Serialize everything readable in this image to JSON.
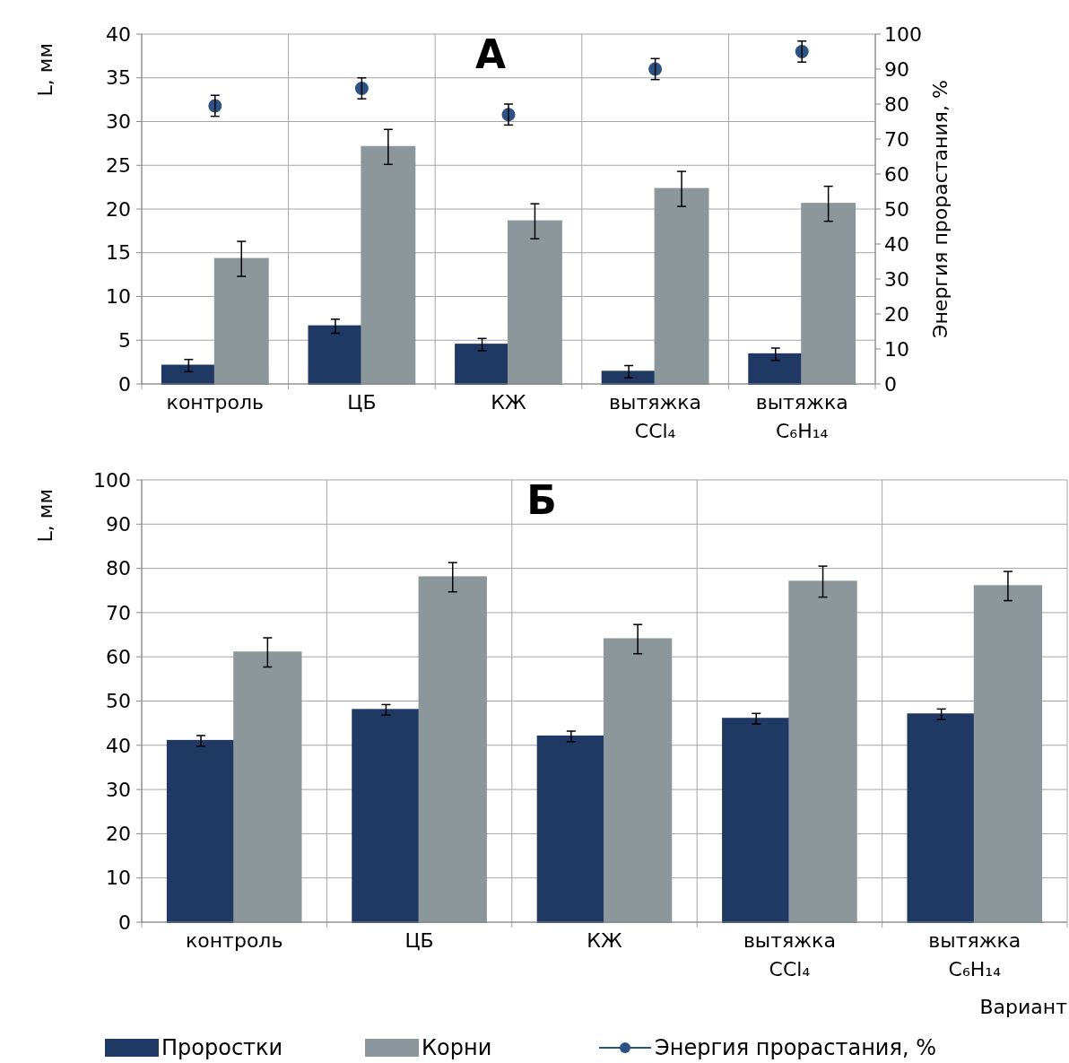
{
  "chart_data": [
    {
      "type": "bar",
      "title": "А",
      "ylabel": "L, мм",
      "y2label": "Энергия прорастания, %",
      "categories": [
        "контроль",
        "ЦБ",
        "КЖ",
        "вытяжка CCl₄",
        "вытяжка C₆H₁₄"
      ],
      "ylim": [
        0,
        40
      ],
      "yticks": [
        0,
        5,
        10,
        15,
        20,
        25,
        30,
        35,
        40
      ],
      "y2lim": [
        0,
        100
      ],
      "y2ticks": [
        0,
        10,
        20,
        30,
        40,
        50,
        60,
        70,
        80,
        90,
        100
      ],
      "grid": true,
      "legend": "bottom",
      "series": [
        {
          "name": "Проростки",
          "color": "#1f3864",
          "values": [
            2.1,
            6.6,
            4.5,
            1.4,
            3.4
          ],
          "errors": [
            0.7,
            0.8,
            0.7,
            0.7,
            0.7
          ]
        },
        {
          "name": "Корни",
          "color": "#8c979c",
          "values": [
            14.3,
            27.1,
            18.6,
            22.3,
            20.6
          ],
          "errors": [
            2,
            2,
            2,
            2,
            2
          ]
        },
        {
          "name": "Энергия прорастания, %",
          "type": "scatter",
          "axis": "y2",
          "marker": "circle",
          "color": "#2b5283",
          "x": [
            "контроль",
            "ЦБ",
            "КЖ",
            "вытяжка CCl₄",
            "вытяжка C₆H₁₄"
          ],
          "values": [
            79.5,
            84.5,
            77,
            90,
            95
          ],
          "errors": [
            3,
            3,
            3,
            3,
            3
          ]
        }
      ]
    },
    {
      "type": "bar",
      "title": "Б",
      "ylabel": "L, мм",
      "xlabel": "Вариант",
      "categories": [
        "контроль",
        "ЦБ",
        "КЖ",
        "вытяжка CCl₄",
        "вытяжка C₆H₁₄"
      ],
      "ylim": [
        0,
        100
      ],
      "yticks": [
        0,
        10,
        20,
        30,
        40,
        50,
        60,
        70,
        80,
        90,
        100
      ],
      "grid": true,
      "legend": "bottom",
      "series": [
        {
          "name": "Проростки",
          "color": "#1f3864",
          "values": [
            41,
            48,
            42,
            46,
            47
          ],
          "errors": [
            1.2,
            1.2,
            1.2,
            1.2,
            1.2
          ]
        },
        {
          "name": "Корни",
          "color": "#8c979c",
          "values": [
            61,
            78,
            64,
            77,
            76
          ],
          "errors": [
            3.3,
            3.3,
            3.3,
            3.5,
            3.3
          ]
        }
      ]
    }
  ]
}
